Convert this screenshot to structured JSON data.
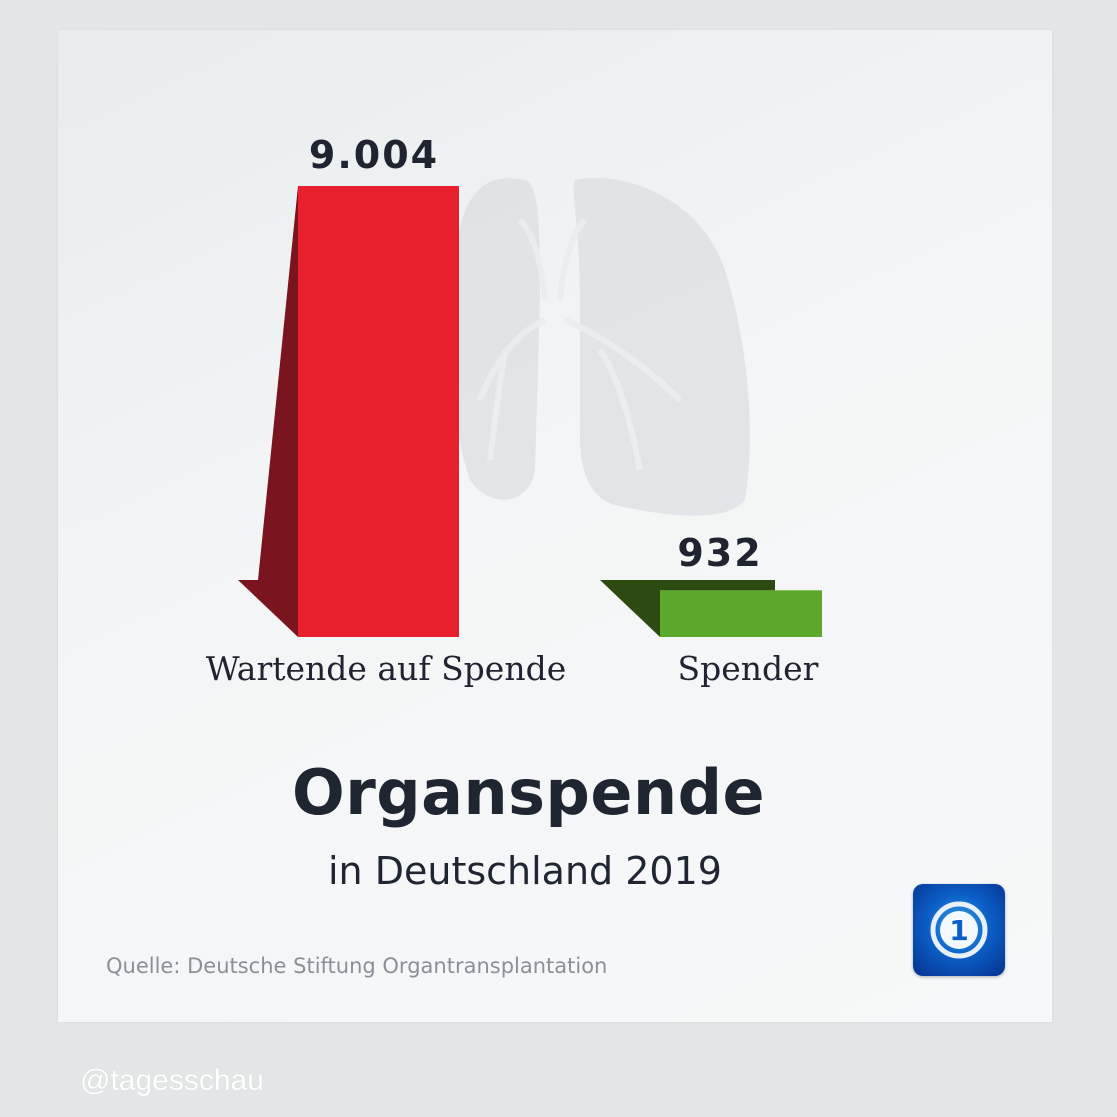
{
  "chart_data": {
    "type": "bar",
    "title": "Organspende",
    "subtitle": "in Deutschland 2019",
    "categories": [
      "Wartende auf Spende",
      "Spender"
    ],
    "values": [
      9004,
      932
    ],
    "value_labels": [
      "9.004",
      "932"
    ],
    "ylim": [
      0,
      9004
    ],
    "grid": false,
    "legend": "none",
    "colors": [
      "#e81f2d",
      "#5ca82a"
    ],
    "shadow_colors": [
      "#7a1520",
      "#2d4a12"
    ],
    "source": "Quelle: Deutsche Stiftung Organtransplantation"
  },
  "footer": {
    "handle": "@tagesschau"
  },
  "logo": {
    "icon": "tagesschau-logo",
    "text": "1"
  }
}
